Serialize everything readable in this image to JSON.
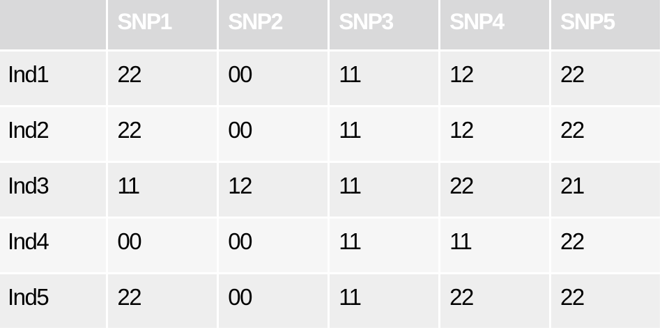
{
  "table": {
    "headers": [
      "",
      "SNP1",
      "SNP2",
      "SNP3",
      "SNP4",
      "SNP5"
    ],
    "rows": [
      {
        "label": "Ind1",
        "cells": [
          "22",
          "00",
          "11",
          "12",
          "22"
        ]
      },
      {
        "label": "Ind2",
        "cells": [
          "22",
          "00",
          "11",
          "12",
          "22"
        ]
      },
      {
        "label": "Ind3",
        "cells": [
          "11",
          "12",
          "11",
          "22",
          "21"
        ]
      },
      {
        "label": "Ind4",
        "cells": [
          "00",
          "00",
          "11",
          "11",
          "22"
        ]
      },
      {
        "label": "Ind5",
        "cells": [
          "22",
          "00",
          "11",
          "22",
          "22"
        ]
      }
    ]
  },
  "colors": {
    "header_bg": "#d9d9da",
    "header_text": "#ffffff",
    "row_odd_bg": "#eeeeee",
    "row_even_bg": "#f6f6f6",
    "body_text": "#000000"
  }
}
